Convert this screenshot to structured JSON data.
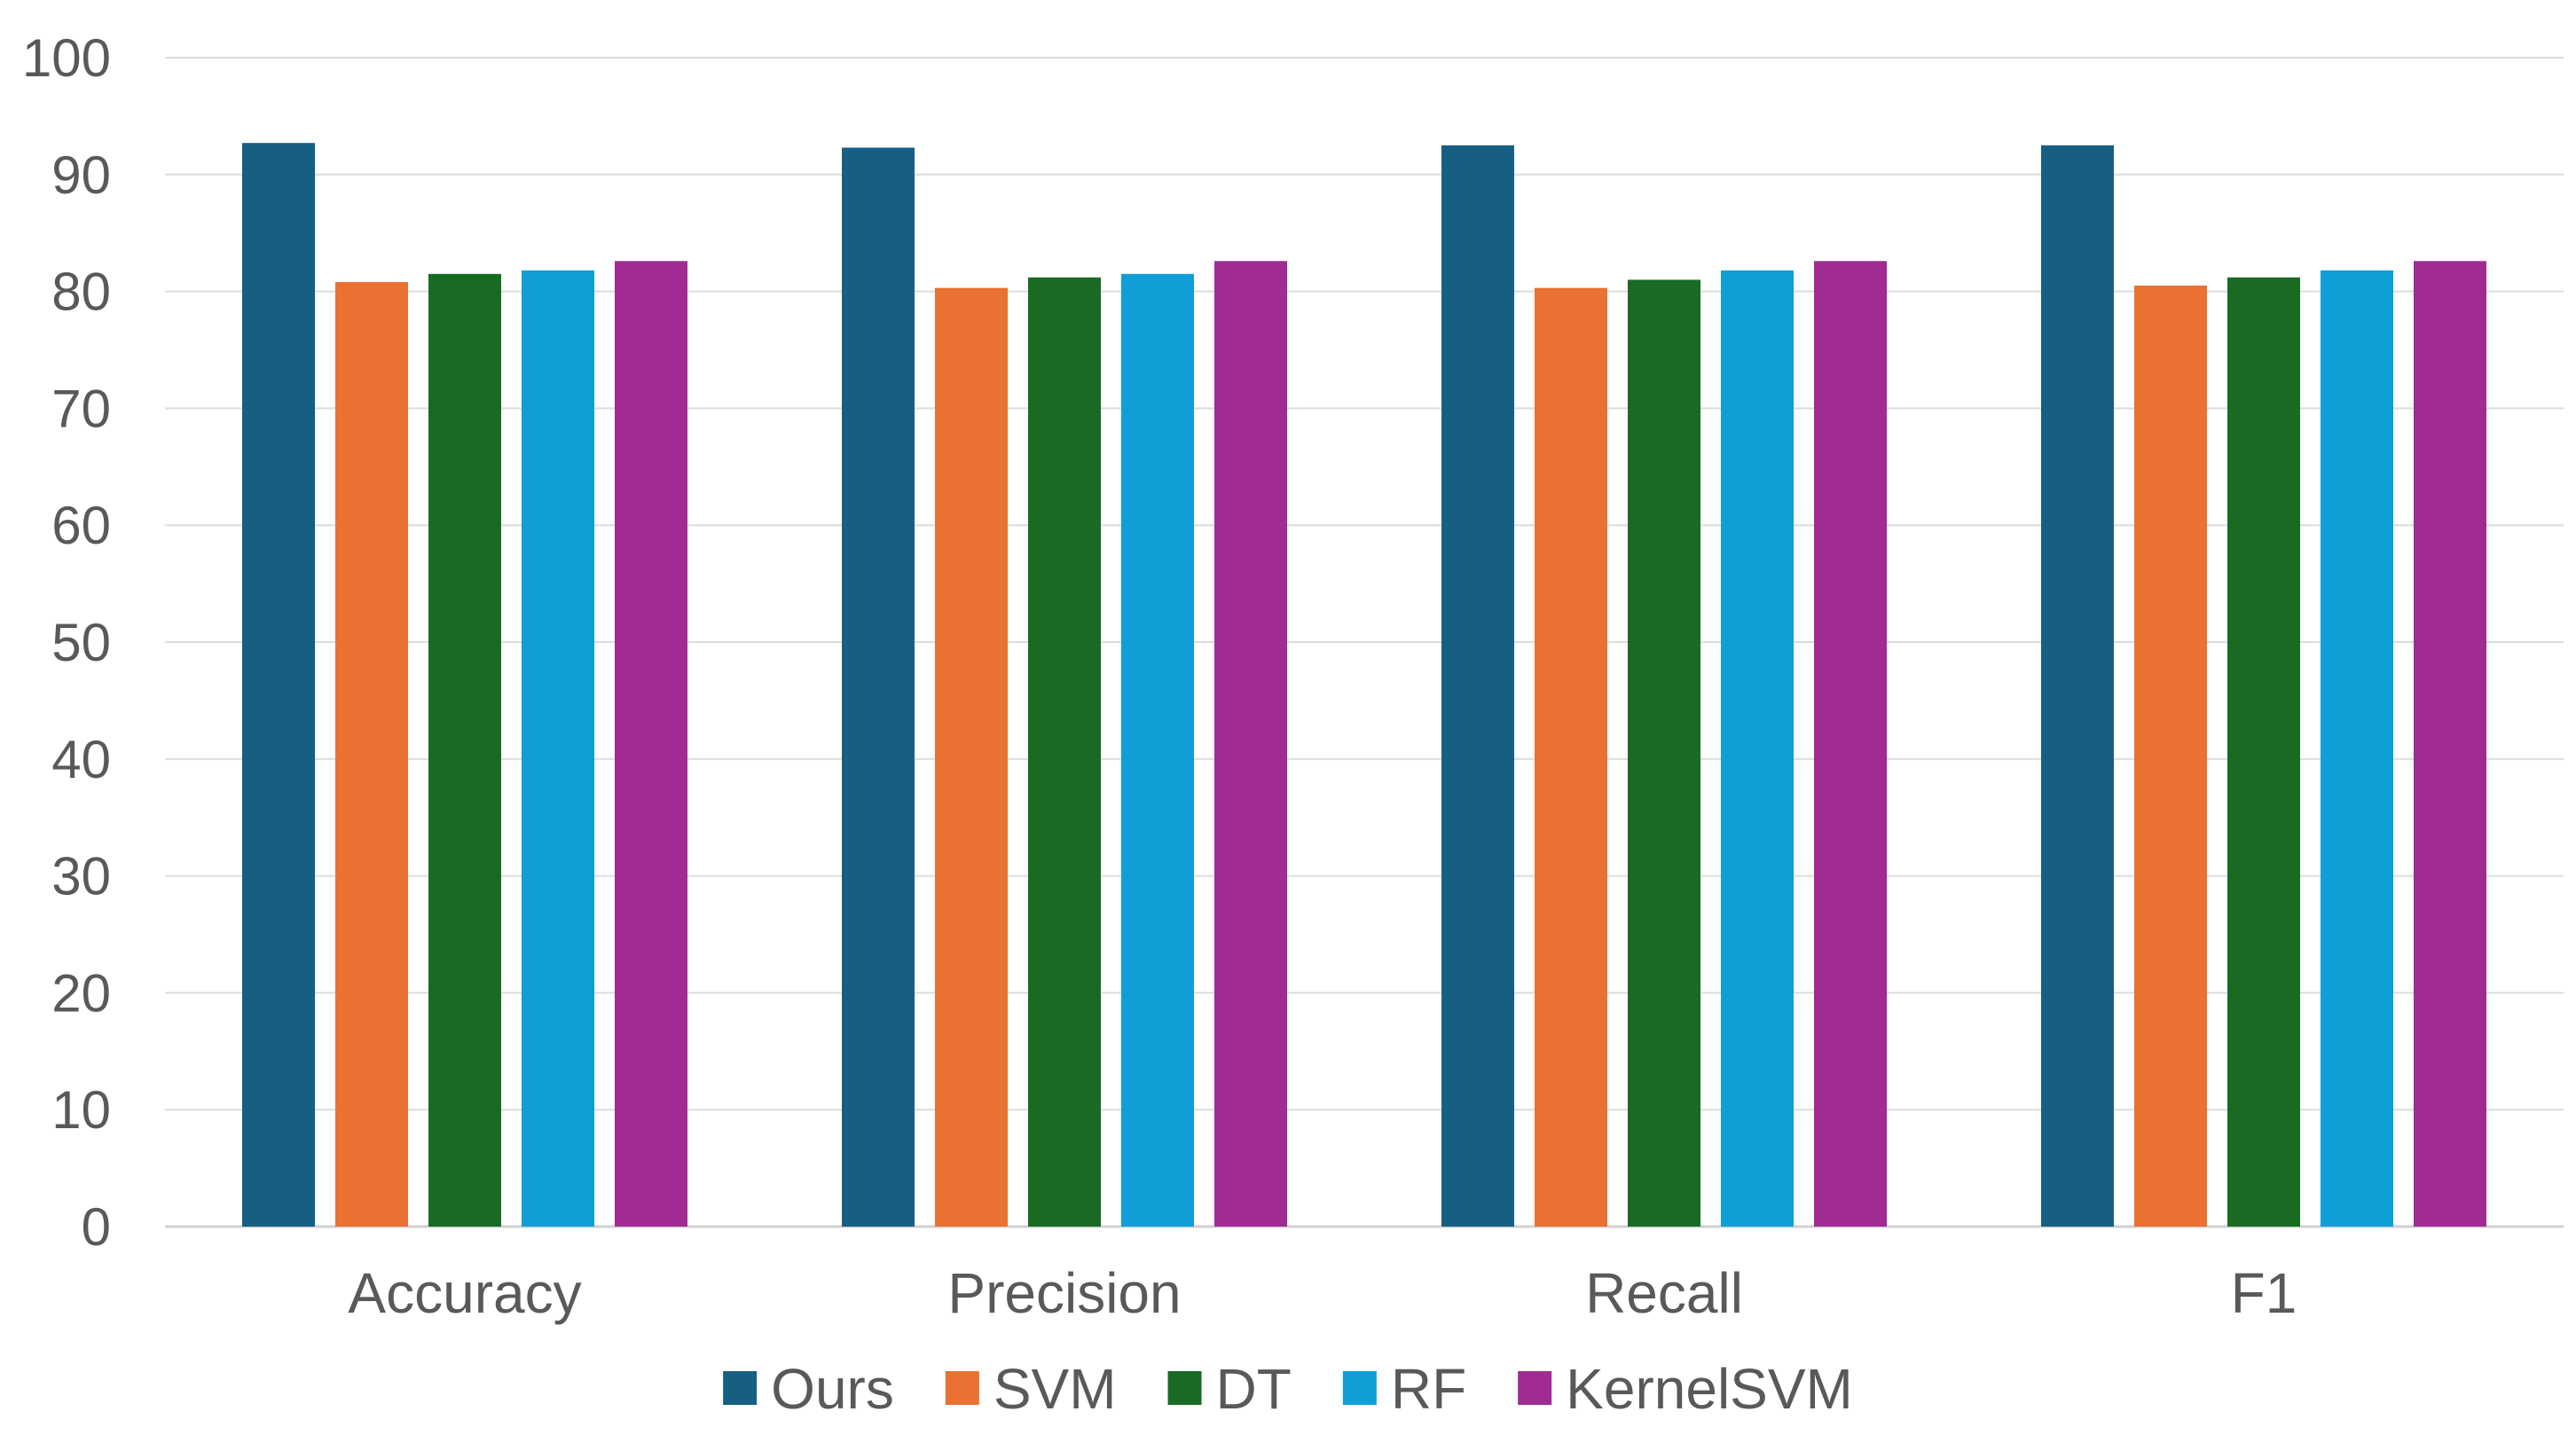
{
  "chart_data": {
    "type": "bar",
    "title": "",
    "xlabel": "",
    "ylabel": "",
    "categories": [
      "Accuracy",
      "Precision",
      "Recall",
      "F1"
    ],
    "ylim": [
      0,
      100
    ],
    "yticks": [
      0,
      10,
      20,
      30,
      40,
      50,
      60,
      70,
      80,
      90,
      100
    ],
    "grid": true,
    "legend_position": "bottom",
    "series": [
      {
        "name": "Ours",
        "color": "#175f82",
        "values": [
          92.7,
          92.3,
          92.5,
          92.5
        ]
      },
      {
        "name": "SVM",
        "color": "#e97132",
        "values": [
          80.8,
          80.3,
          80.3,
          80.5
        ]
      },
      {
        "name": "DT",
        "color": "#196b24",
        "values": [
          81.5,
          81.2,
          81.0,
          81.2
        ]
      },
      {
        "name": "RF",
        "color": "#0f9ed5",
        "values": [
          81.8,
          81.5,
          81.8,
          81.8
        ]
      },
      {
        "name": "KernelSVM",
        "color": "#a02b93",
        "values": [
          82.6,
          82.6,
          82.6,
          82.6
        ]
      }
    ]
  }
}
